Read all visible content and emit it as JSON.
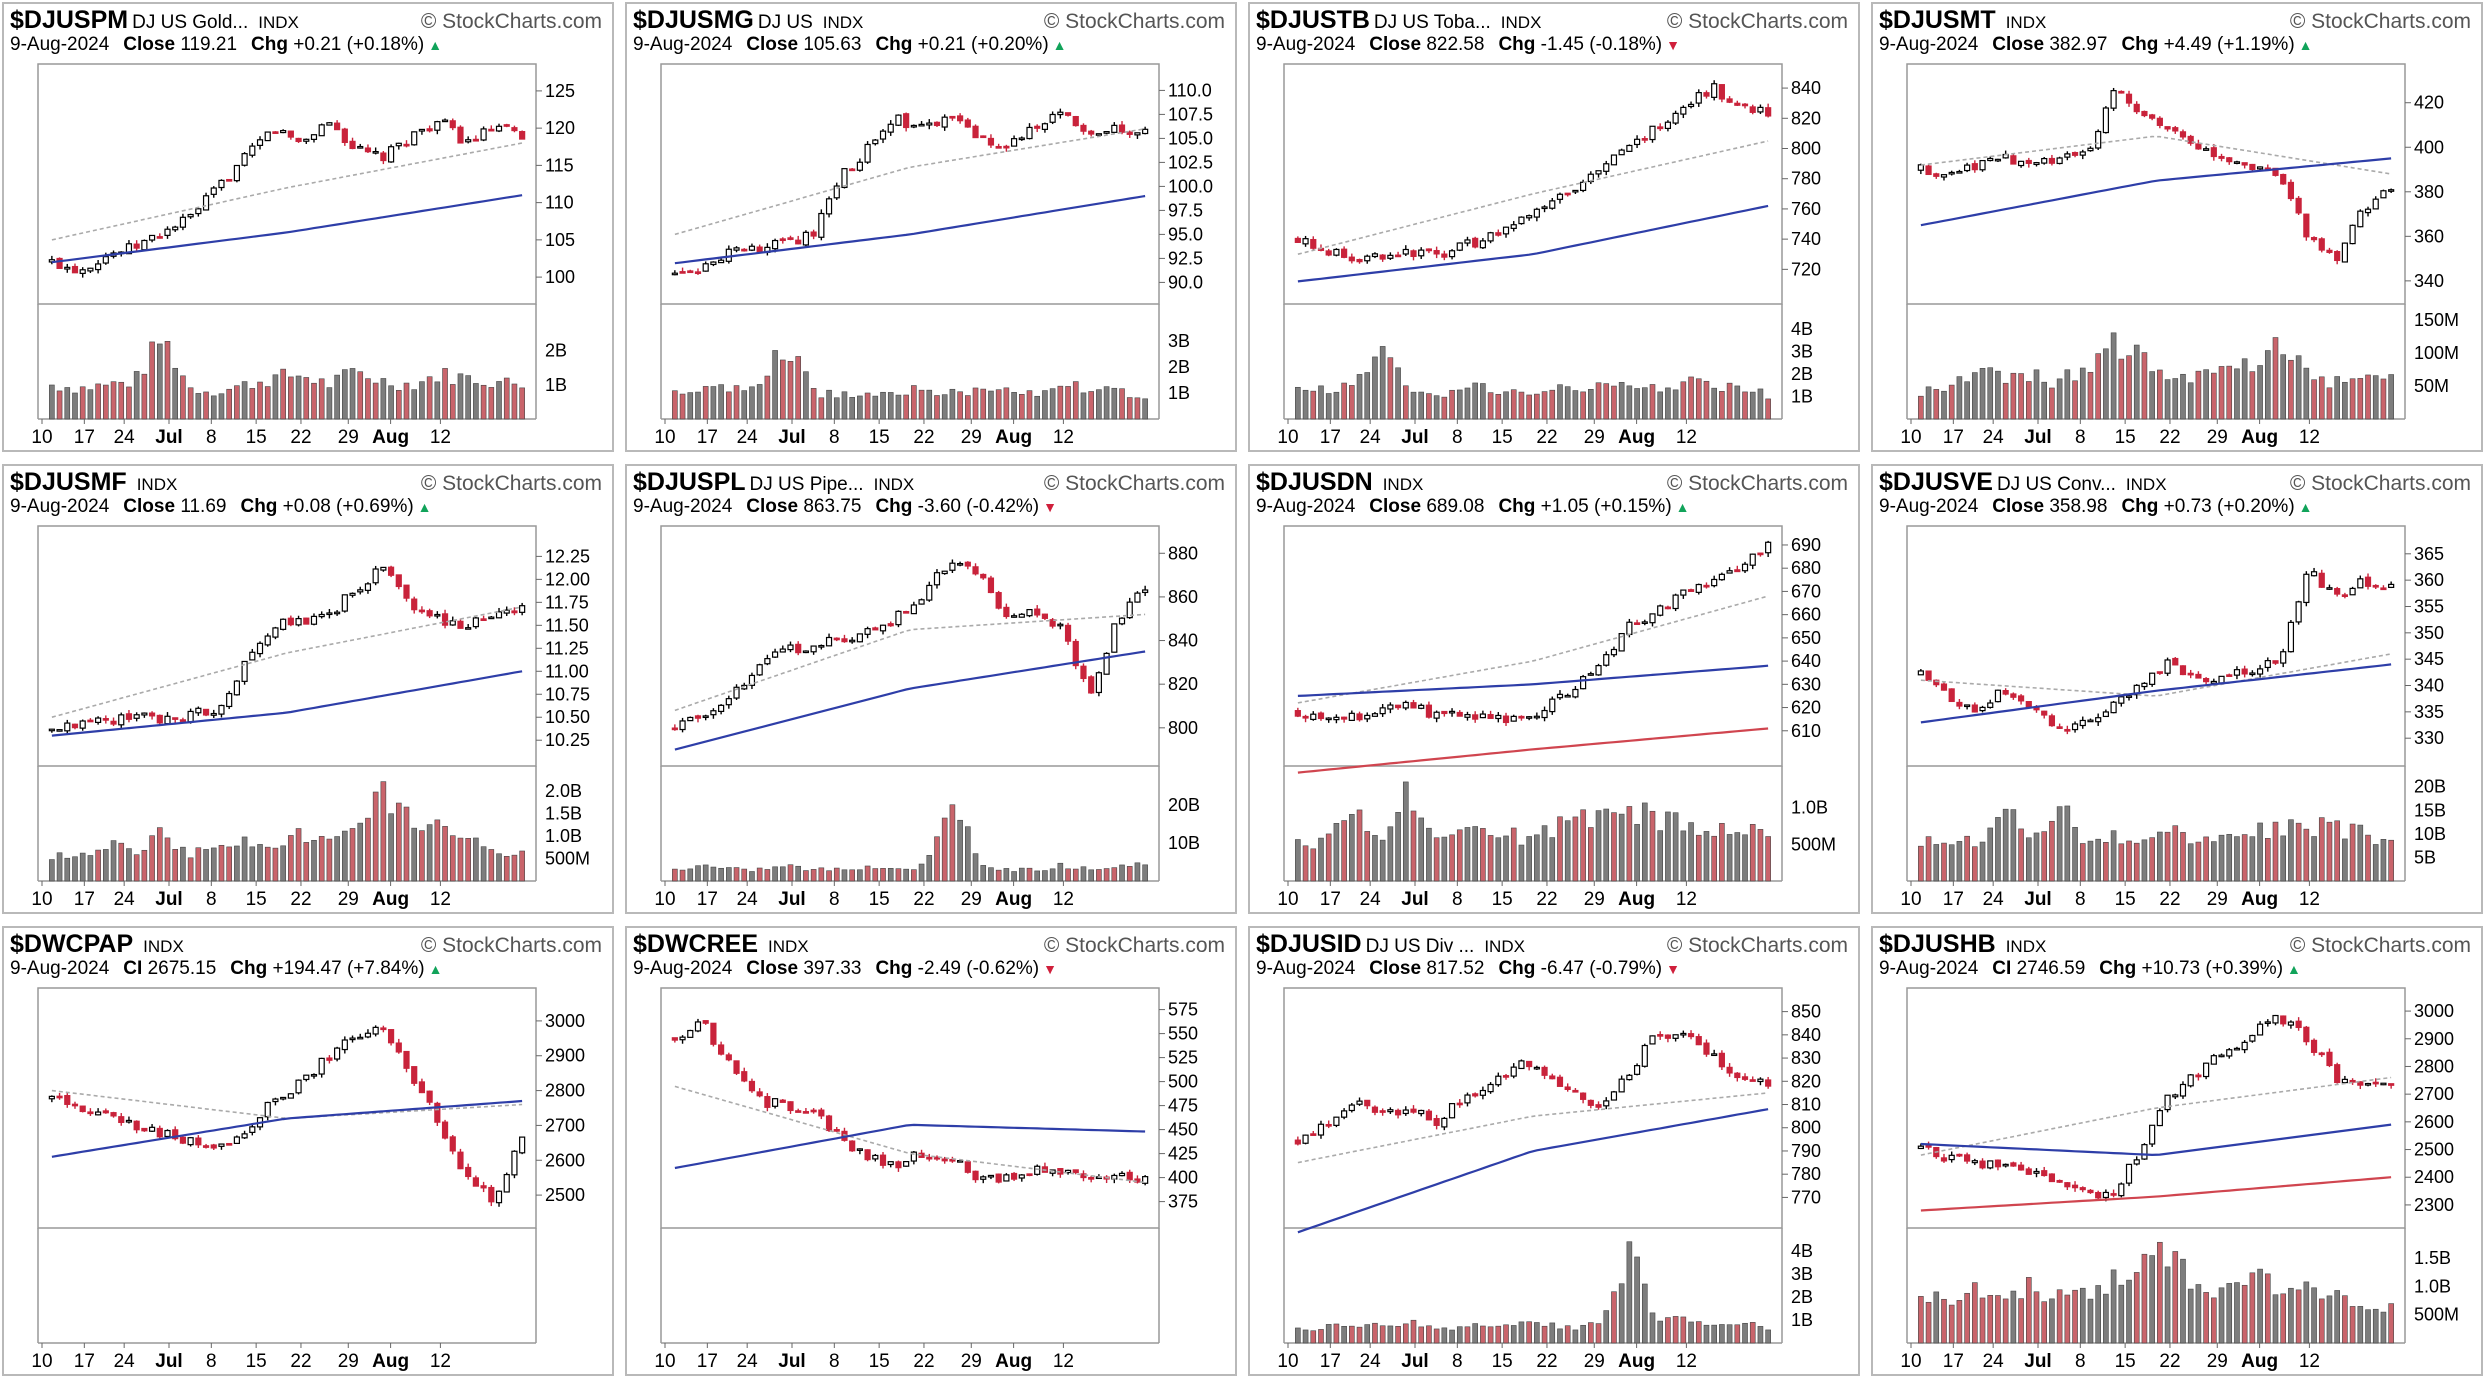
{
  "chart_data": [
    {
      "type": "candlestick",
      "symbol": "$DJUSPM",
      "name": "DJ US Gold...",
      "exchange": "INDX",
      "date": "9-Aug-2024",
      "close_label": "Close",
      "close": "119.21",
      "chg": "+0.21 (+0.18%)",
      "dir": "up",
      "yticks": [
        "125",
        "120",
        "115",
        "110",
        "105",
        "100"
      ],
      "ylim": [
        98,
        127
      ],
      "vticks": [
        "2B",
        "1B"
      ],
      "vmax": 2.9,
      "xticks": [
        "10",
        "17",
        "24",
        "Jul",
        "8",
        "15",
        "22",
        "29",
        "Aug",
        "12"
      ],
      "path": [
        102,
        101,
        103,
        104,
        106,
        108,
        112,
        116,
        120,
        118,
        121,
        117,
        116,
        119,
        121,
        118,
        120,
        119
      ],
      "ma1": [
        105,
        112,
        118
      ],
      "ma2": [
        102,
        106,
        111
      ],
      "vol": [
        1.0,
        0.9,
        1.0,
        1.1,
        2.4,
        0.9,
        0.8,
        1.0,
        1.2,
        1.3,
        1.0,
        1.4,
        1.1,
        1.0,
        1.3,
        1.2,
        1.1,
        1.0
      ],
      "source": "© StockCharts.com"
    },
    {
      "type": "candlestick",
      "symbol": "$DJUSMG",
      "name": "DJ US",
      "exchange": "INDX",
      "date": "9-Aug-2024",
      "close_label": "Close",
      "close": "105.63",
      "chg": "+0.21 (+0.20%)",
      "dir": "up",
      "yticks": [
        "110.0",
        "107.5",
        "105.0",
        "102.5",
        "100.0",
        "97.5",
        "95.0",
        "92.5",
        "90.0"
      ],
      "ylim": [
        89,
        111.5
      ],
      "vticks": [
        "3B",
        "2B",
        "1B"
      ],
      "vmax": 3.8,
      "xticks": [
        "10",
        "17",
        "24",
        "Jul",
        "8",
        "15",
        "22",
        "29",
        "Aug",
        "12"
      ],
      "path": [
        91,
        91.5,
        93,
        93.5,
        94,
        95,
        101,
        104,
        107,
        106,
        107,
        105,
        104,
        106,
        108,
        105,
        106,
        105.6
      ],
      "ma1": [
        95,
        102,
        106
      ],
      "ma2": [
        92,
        95,
        99
      ],
      "vol": [
        1.0,
        1.1,
        1.2,
        1.1,
        3.0,
        1.0,
        0.9,
        1.0,
        1.1,
        1.2,
        1.0,
        1.1,
        1.2,
        1.0,
        1.4,
        1.1,
        1.0,
        0.9
      ],
      "source": "© StockCharts.com"
    },
    {
      "type": "candlestick",
      "symbol": "$DJUSTB",
      "name": "DJ US Toba...",
      "exchange": "INDX",
      "date": "9-Aug-2024",
      "close_label": "Close",
      "close": "822.58",
      "chg": "-1.45 (-0.18%)",
      "dir": "down",
      "yticks": [
        "840",
        "820",
        "800",
        "780",
        "760",
        "740",
        "720"
      ],
      "ylim": [
        705,
        848
      ],
      "vticks": [
        "4B",
        "3B",
        "2B",
        "1B"
      ],
      "vmax": 4.4,
      "xticks": [
        "10",
        "17",
        "24",
        "Jul",
        "8",
        "15",
        "22",
        "29",
        "Aug",
        "12"
      ],
      "path": [
        740,
        733,
        725,
        730,
        732,
        728,
        735,
        742,
        752,
        765,
        775,
        788,
        800,
        815,
        830,
        840,
        828,
        822
      ],
      "ma1": [
        730,
        770,
        805
      ],
      "ma2": [
        712,
        730,
        762
      ],
      "vol": [
        1.2,
        1.4,
        1.3,
        3.4,
        1.2,
        1.1,
        1.4,
        1.3,
        1.2,
        1.4,
        1.3,
        1.5,
        1.6,
        1.4,
        1.7,
        1.6,
        1.3,
        1.1
      ],
      "source": "© StockCharts.com"
    },
    {
      "type": "candlestick",
      "symbol": "$DJUSMT",
      "name": "",
      "exchange": "INDX",
      "date": "9-Aug-2024",
      "close_label": "Close",
      "close": "382.97",
      "chg": "+4.49 (+1.19%)",
      "dir": "up",
      "yticks": [
        "420",
        "400",
        "380",
        "360",
        "340"
      ],
      "ylim": [
        335,
        432
      ],
      "vticks": [
        "150M",
        "100M",
        "50M"
      ],
      "vmax": 150,
      "xticks": [
        "10",
        "17",
        "24",
        "Jul",
        "8",
        "15",
        "22",
        "29",
        "Aug",
        "12"
      ],
      "path": [
        390,
        388,
        392,
        395,
        393,
        396,
        398,
        425,
        415,
        408,
        400,
        395,
        392,
        385,
        360,
        350,
        372,
        383
      ],
      "ma1": [
        392,
        405,
        388
      ],
      "ma2": [
        365,
        385,
        395
      ],
      "vol": [
        40,
        55,
        70,
        60,
        65,
        55,
        80,
        110,
        90,
        70,
        60,
        75,
        85,
        120,
        70,
        55,
        60,
        58
      ],
      "source": "© StockCharts.com"
    },
    {
      "type": "candlestick",
      "symbol": "$DJUSMF",
      "name": "",
      "exchange": "INDX",
      "date": "9-Aug-2024",
      "close_label": "Close",
      "close": "11.69",
      "chg": "+0.08 (+0.69%)",
      "dir": "up",
      "yticks": [
        "12.25",
        "12.00",
        "11.75",
        "11.50",
        "11.25",
        "11.00",
        "10.75",
        "10.50",
        "10.25"
      ],
      "ylim": [
        10.1,
        12.45
      ],
      "vticks": [
        "2.0B",
        "1.5B",
        "1.0B",
        "500M"
      ],
      "vmax": 2.2,
      "xticks": [
        "10",
        "17",
        "24",
        "Jul",
        "8",
        "15",
        "22",
        "29",
        "Aug",
        "12"
      ],
      "path": [
        10.35,
        10.4,
        10.45,
        10.5,
        10.48,
        10.52,
        10.6,
        11.1,
        11.5,
        11.55,
        11.6,
        11.9,
        12.15,
        11.7,
        11.55,
        11.5,
        11.62,
        11.69
      ],
      "ma1": [
        10.5,
        11.2,
        11.7
      ],
      "ma2": [
        10.3,
        10.55,
        11.0
      ],
      "vol": [
        0.5,
        0.6,
        0.8,
        0.7,
        1.1,
        0.6,
        0.7,
        0.9,
        0.8,
        1.0,
        0.9,
        1.1,
        1.9,
        1.4,
        1.2,
        0.9,
        0.7,
        0.6
      ],
      "source": "© StockCharts.com"
    },
    {
      "type": "candlestick",
      "symbol": "$DJUSPL",
      "name": "DJ US Pipe...",
      "exchange": "INDX",
      "date": "9-Aug-2024",
      "close_label": "Close",
      "close": "863.75",
      "chg": "-3.60 (-0.42%)",
      "dir": "down",
      "yticks": [
        "880",
        "860",
        "840",
        "820",
        "800"
      ],
      "ylim": [
        788,
        887
      ],
      "vticks": [
        "20B",
        "10B"
      ],
      "vmax": 26,
      "xticks": [
        "10",
        "17",
        "24",
        "Jul",
        "8",
        "15",
        "22",
        "29",
        "Aug",
        "12"
      ],
      "path": [
        800,
        805,
        815,
        828,
        835,
        838,
        840,
        845,
        850,
        862,
        878,
        870,
        850,
        855,
        845,
        815,
        850,
        864
      ],
      "ma1": [
        808,
        845,
        852
      ],
      "ma2": [
        790,
        818,
        835
      ],
      "vol": [
        3,
        4,
        3,
        3,
        4,
        3,
        3,
        4,
        3,
        4,
        24,
        4,
        3,
        3,
        4,
        3,
        4,
        4
      ],
      "source": "© StockCharts.com"
    },
    {
      "type": "candlestick",
      "symbol": "$DJUSDN",
      "name": "",
      "exchange": "INDX",
      "date": "9-Aug-2024",
      "close_label": "Close",
      "close": "689.08",
      "chg": "+1.05 (+0.15%)",
      "dir": "up",
      "yticks": [
        "690",
        "680",
        "670",
        "660",
        "650",
        "640",
        "630",
        "620",
        "610"
      ],
      "ylim": [
        600,
        693
      ],
      "vticks": [
        "1.0B",
        "500M"
      ],
      "vmax": 1.35,
      "xticks": [
        "10",
        "17",
        "24",
        "Jul",
        "8",
        "15",
        "22",
        "29",
        "Aug",
        "12"
      ],
      "path": [
        618,
        614,
        616,
        620,
        622,
        616,
        618,
        615,
        614,
        620,
        628,
        640,
        655,
        662,
        670,
        675,
        680,
        689
      ],
      "ma1": [
        622,
        640,
        668
      ],
      "ma2": [
        625,
        630,
        638
      ],
      "ma3": [
        592,
        602,
        611
      ],
      "vol": [
        0.5,
        0.5,
        0.9,
        0.5,
        1.2,
        0.5,
        0.6,
        0.7,
        0.6,
        0.7,
        0.8,
        0.9,
        1.0,
        0.8,
        0.8,
        0.7,
        0.8,
        0.6
      ],
      "source": "© StockCharts.com"
    },
    {
      "type": "candlestick",
      "symbol": "$DJUSVE",
      "name": "DJ US Conv...",
      "exchange": "INDX",
      "date": "9-Aug-2024",
      "close_label": "Close",
      "close": "358.98",
      "chg": "+0.73 (+0.20%)",
      "dir": "up",
      "yticks": [
        "365",
        "360",
        "355",
        "350",
        "345",
        "340",
        "335",
        "330"
      ],
      "ylim": [
        327,
        368
      ],
      "vticks": [
        "20B",
        "15B",
        "10B",
        "5B"
      ],
      "vmax": 21,
      "xticks": [
        "10",
        "17",
        "24",
        "Jul",
        "8",
        "15",
        "22",
        "29",
        "Aug",
        "12"
      ],
      "path": [
        342,
        338,
        335,
        339,
        336,
        332,
        333,
        337,
        340,
        345,
        341,
        342,
        343,
        345,
        362,
        357,
        360,
        359
      ],
      "ma1": [
        341,
        338,
        346
      ],
      "ma2": [
        333,
        339,
        344
      ],
      "vol": [
        9,
        9,
        8,
        17,
        8,
        17,
        8,
        9,
        9,
        10,
        9,
        9,
        10,
        11,
        12,
        11,
        10,
        9
      ],
      "source": "© StockCharts.com"
    },
    {
      "type": "candlestick",
      "symbol": "$DWCPAP",
      "name": "",
      "exchange": "INDX",
      "date": "9-Aug-2024",
      "close_label": "CI",
      "close": "2675.15",
      "chg": "+194.47 (+7.84%)",
      "dir": "up",
      "yticks": [
        "3000",
        "2900",
        "2800",
        "2700",
        "2600",
        "2500"
      ],
      "ylim": [
        2440,
        3060
      ],
      "vticks": [],
      "vmax": 1,
      "xticks": [
        "10",
        "17",
        "24",
        "Jul",
        "8",
        "15",
        "22",
        "29",
        "Aug",
        "12"
      ],
      "path": [
        2780,
        2740,
        2720,
        2700,
        2680,
        2650,
        2640,
        2680,
        2780,
        2820,
        2900,
        2960,
        2980,
        2850,
        2700,
        2550,
        2480,
        2675
      ],
      "ma1": [
        2800,
        2720,
        2760
      ],
      "ma2": [
        2610,
        2720,
        2770
      ],
      "vol": [],
      "source": "© StockCharts.com"
    },
    {
      "type": "candlestick",
      "symbol": "$DWCREE",
      "name": "",
      "exchange": "INDX",
      "date": "9-Aug-2024",
      "close_label": "Close",
      "close": "397.33",
      "chg": "-2.49 (-0.62%)",
      "dir": "down",
      "yticks": [
        "575",
        "550",
        "525",
        "500",
        "475",
        "450",
        "425",
        "400",
        "375"
      ],
      "ylim": [
        360,
        585
      ],
      "vticks": [],
      "vmax": 1,
      "xticks": [
        "10",
        "17",
        "24",
        "Jul",
        "8",
        "15",
        "22",
        "29",
        "Aug",
        "12"
      ],
      "path": [
        545,
        560,
        520,
        480,
        475,
        470,
        440,
        420,
        415,
        425,
        420,
        395,
        400,
        410,
        405,
        395,
        400,
        397
      ],
      "ma1": [
        495,
        425,
        395
      ],
      "ma2": [
        410,
        455,
        448
      ],
      "vol": [],
      "source": "© StockCharts.com"
    },
    {
      "type": "candlestick",
      "symbol": "$DJUSID",
      "name": "DJ US Div ...",
      "exchange": "INDX",
      "date": "9-Aug-2024",
      "close_label": "Close",
      "close": "817.52",
      "chg": "-6.47 (-0.79%)",
      "dir": "down",
      "yticks": [
        "850",
        "840",
        "830",
        "820",
        "810",
        "800",
        "790",
        "780",
        "770"
      ],
      "ylim": [
        762,
        855
      ],
      "vticks": [
        "4B",
        "3B",
        "2B",
        "1B"
      ],
      "vmax": 4.3,
      "xticks": [
        "10",
        "17",
        "24",
        "Jul",
        "8",
        "15",
        "22",
        "29",
        "Aug",
        "12"
      ],
      "path": [
        795,
        800,
        812,
        805,
        808,
        803,
        812,
        820,
        828,
        822,
        815,
        808,
        825,
        840,
        842,
        830,
        822,
        818
      ],
      "ma1": [
        785,
        805,
        815
      ],
      "ma2": [
        755,
        790,
        808
      ],
      "vol": [
        0.6,
        0.7,
        0.8,
        0.7,
        0.9,
        0.6,
        0.7,
        0.8,
        0.9,
        0.8,
        0.7,
        0.8,
        4.0,
        1.1,
        1.0,
        0.9,
        0.8,
        0.7
      ],
      "source": "© StockCharts.com"
    },
    {
      "type": "candlestick",
      "symbol": "$DJUSHB",
      "name": "",
      "exchange": "INDX",
      "date": "9-Aug-2024",
      "close_label": "CI",
      "close": "2746.59",
      "chg": "+10.73 (+0.39%)",
      "dir": "up",
      "yticks": [
        "3000",
        "2900",
        "2800",
        "2700",
        "2600",
        "2500",
        "2400",
        "2300"
      ],
      "ylim": [
        2260,
        3040
      ],
      "vticks": [
        "1.5B",
        "1.0B",
        "500M"
      ],
      "vmax": 1.75,
      "xticks": [
        "10",
        "17",
        "24",
        "Jul",
        "8",
        "15",
        "22",
        "29",
        "Aug",
        "12"
      ],
      "path": [
        2500,
        2470,
        2450,
        2440,
        2420,
        2380,
        2330,
        2350,
        2500,
        2700,
        2780,
        2850,
        2920,
        2980,
        2900,
        2760,
        2720,
        2747
      ],
      "ma1": [
        2480,
        2650,
        2760
      ],
      "ma2": [
        2520,
        2480,
        2590
      ],
      "ma3": [
        2280,
        2330,
        2400
      ],
      "vol": [
        0.7,
        0.8,
        0.9,
        0.8,
        1.0,
        0.8,
        0.9,
        1.1,
        1.3,
        1.6,
        1.0,
        0.9,
        1.2,
        1.0,
        0.9,
        0.8,
        0.7,
        0.6
      ],
      "source": "© StockCharts.com"
    }
  ]
}
